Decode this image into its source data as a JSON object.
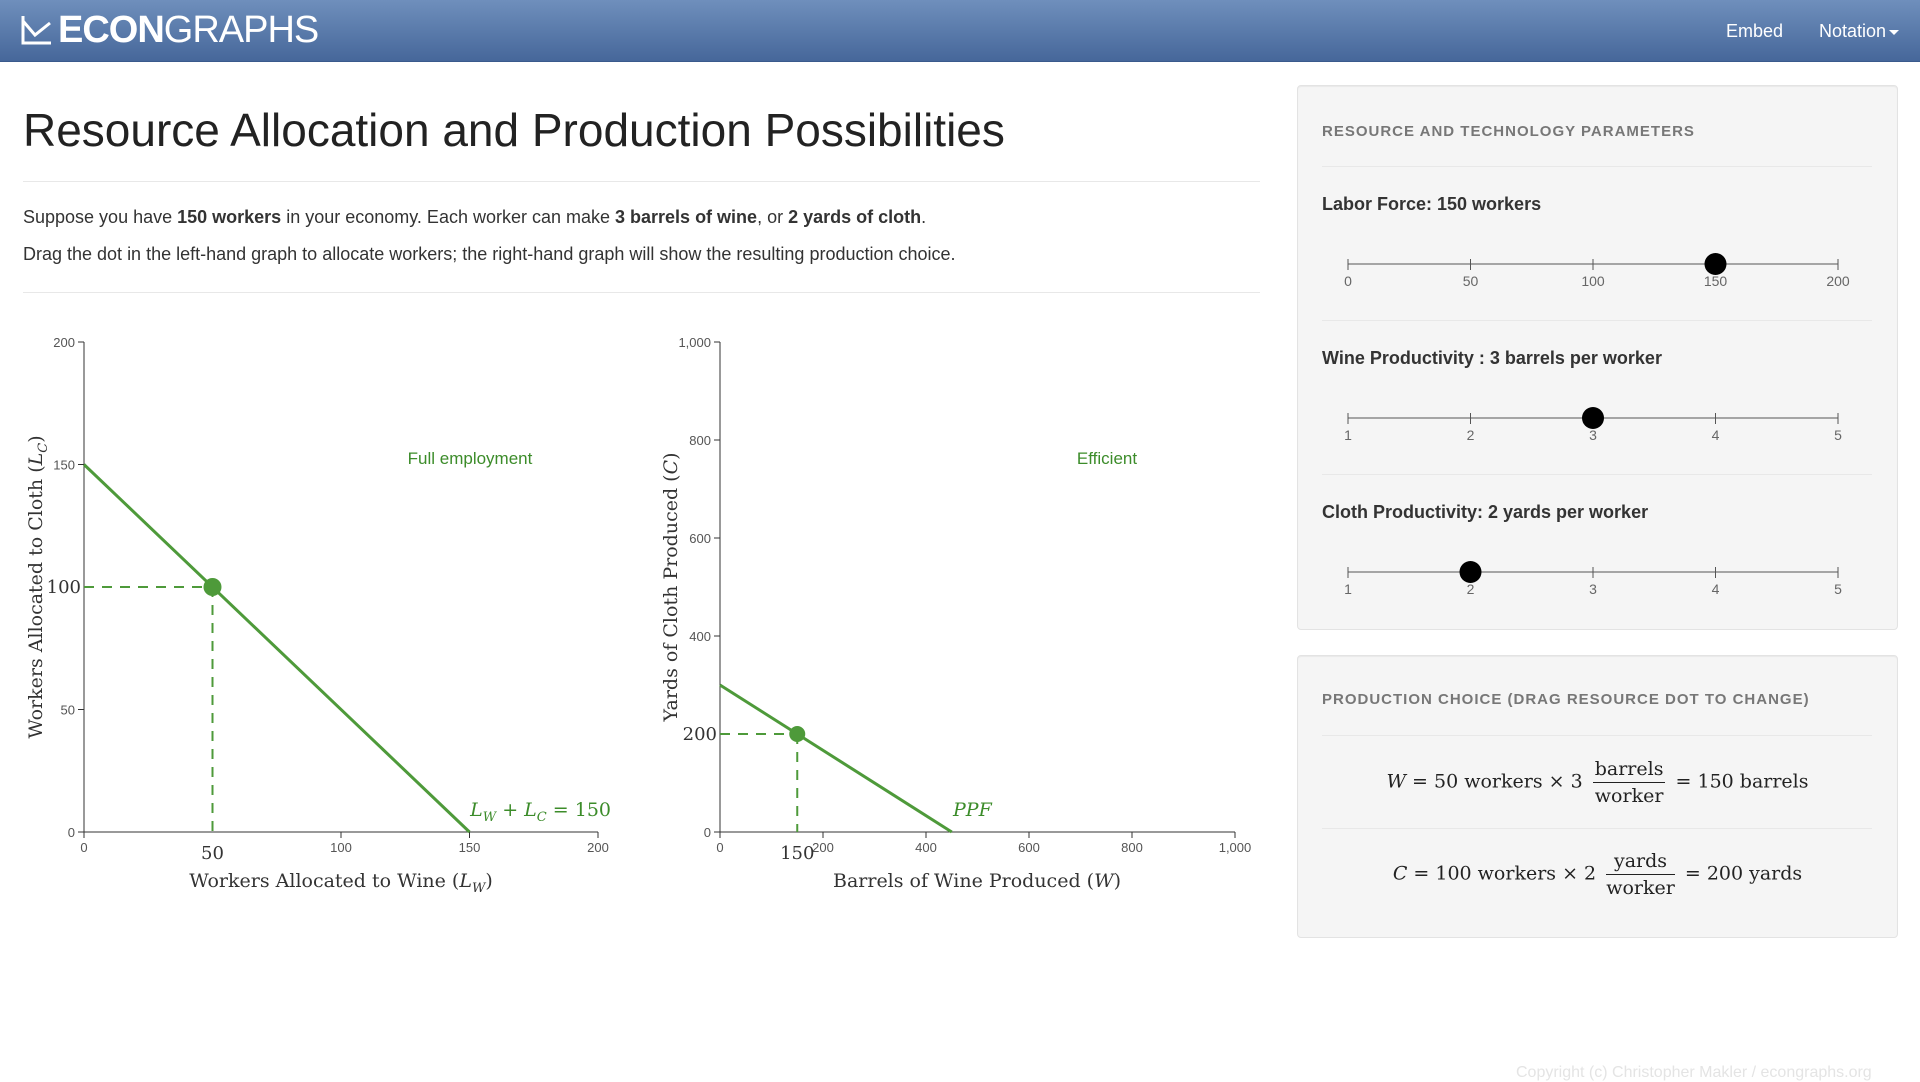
{
  "navbar": {
    "brand_bold": "ECON",
    "brand_light": "GRAPHS",
    "embed_label": "Embed",
    "notation_label": "Notation"
  },
  "page": {
    "title": "Resource Allocation and Production Possibilities",
    "intro1": {
      "t1": "Suppose you have ",
      "b1": "150 workers",
      "t2": " in your economy. Each worker can make ",
      "b2": "3 barrels of wine",
      "t3": ", or ",
      "b3": "2 yards of cloth",
      "t4": "."
    },
    "intro2": "Drag the dot in the left-hand graph to allocate workers; the right-hand graph will show the resulting production choice."
  },
  "colors": {
    "green": "#4e9a3a",
    "label_green": "#3c8c2a",
    "nav_top": "#6f8fbc",
    "nav_bottom": "#46679a"
  },
  "chart_data": [
    {
      "type": "line",
      "xlabel": "Workers Allocated to Wine (L_W)",
      "ylabel": "Workers Allocated to Cloth (L_C)",
      "xlim": [
        0,
        200
      ],
      "ylim": [
        0,
        200
      ],
      "xticks": [
        "0",
        "100",
        "150",
        "200"
      ],
      "yticks": [
        "0",
        "50",
        "150",
        "200"
      ],
      "series": [
        {
          "x": [
            0,
            150
          ],
          "y": [
            150,
            0
          ]
        }
      ],
      "line_label": "L_W + L_C = 150",
      "region_label": "Full employment",
      "point": {
        "x": 50,
        "y": 100,
        "x_label": "50",
        "y_label": "100"
      }
    },
    {
      "type": "line",
      "xlabel": "Barrels of Wine Produced (W)",
      "ylabel": "Yards of Cloth Produced (C)",
      "xlim": [
        0,
        1000
      ],
      "ylim": [
        0,
        1000
      ],
      "xticks": [
        "0",
        "200",
        "400",
        "600",
        "800",
        "1,000"
      ],
      "yticks": [
        "0",
        "400",
        "600",
        "800",
        "1,000"
      ],
      "series": [
        {
          "x": [
            0,
            450
          ],
          "y": [
            300,
            0
          ]
        }
      ],
      "line_label": "PPF",
      "region_label": "Efficient",
      "point": {
        "x": 150,
        "y": 200,
        "x_label": "150",
        "y_label": "200"
      }
    }
  ],
  "params": {
    "title": "RESOURCE AND TECHNOLOGY PARAMETERS",
    "labor": {
      "label": "Labor Force: 150 workers",
      "value": 150,
      "min": 0,
      "max": 200,
      "ticks": [
        "0",
        "50",
        "100",
        "150",
        "200"
      ]
    },
    "wine": {
      "label": "Wine Productivity : 3 barrels per worker",
      "value": 3,
      "min": 1,
      "max": 5,
      "ticks": [
        "1",
        "2",
        "3",
        "4",
        "5"
      ]
    },
    "cloth": {
      "label": "Cloth Productivity: 2 yards per worker",
      "value": 2,
      "min": 1,
      "max": 5,
      "ticks": [
        "1",
        "2",
        "3",
        "4",
        "5"
      ]
    }
  },
  "production": {
    "title": "PRODUCTION CHOICE (DRAG RESOURCE DOT TO CHANGE)",
    "wine_eq": {
      "lhs": "W",
      "eq1": "= 50 workers × 3",
      "num": "barrels",
      "den": "worker",
      "rhs": "= 150 barrels"
    },
    "cloth_eq": {
      "lhs": "C",
      "eq1": "= 100 workers × 2",
      "num": "yards",
      "den": "worker",
      "rhs": "= 200 yards"
    }
  },
  "footer": "Copyright (c) Christopher Makler / econgraphs.org"
}
